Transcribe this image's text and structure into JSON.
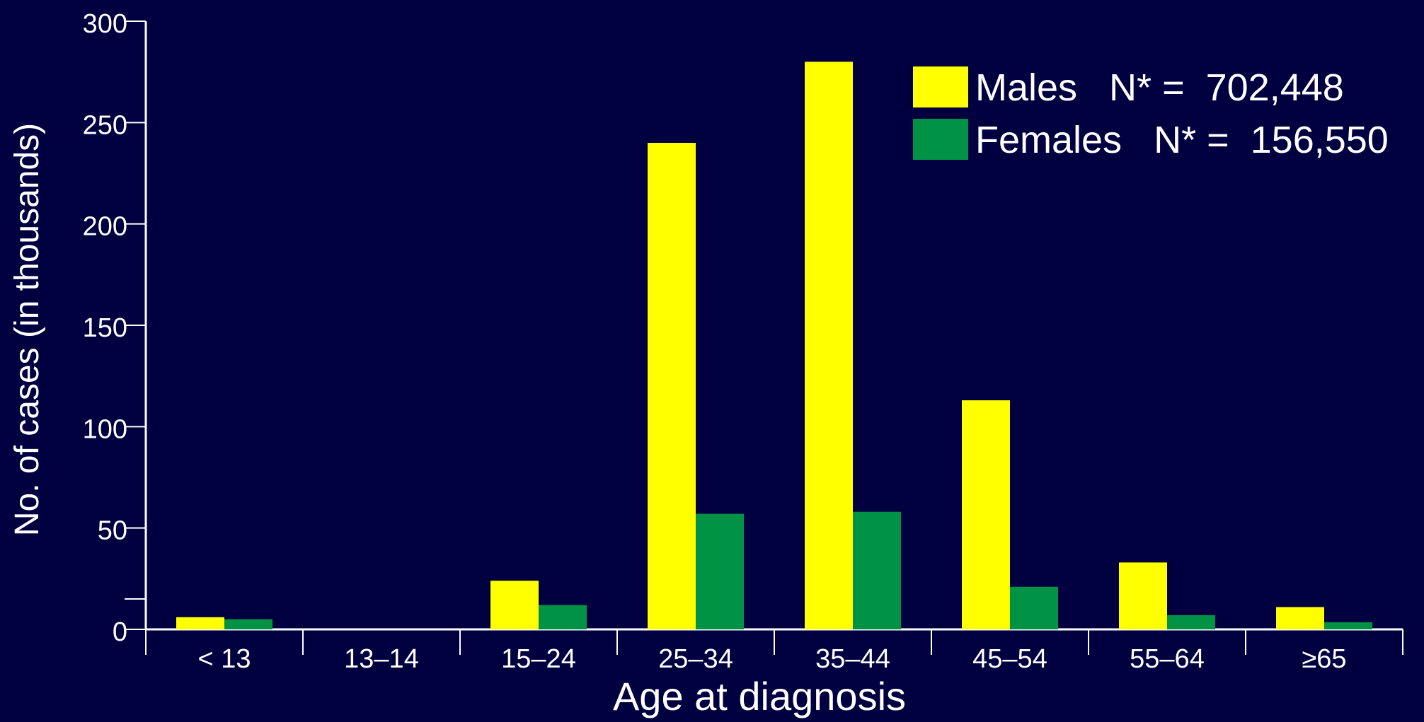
{
  "colors": {
    "background": "#000040",
    "axis": "#ffffff",
    "text": "#ffffff",
    "males": "#ffff00",
    "females": "#009245"
  },
  "chart_data": {
    "type": "bar",
    "title": "",
    "xlabel": "Age at diagnosis",
    "ylabel": "No. of cases (in thousands)",
    "ylim": [
      0,
      300
    ],
    "yticks": [
      0,
      50,
      100,
      150,
      200,
      250,
      300
    ],
    "grid": false,
    "legend_position": "top-right",
    "categories": [
      "< 13",
      "13–14",
      "15–24",
      "25–34",
      "35–44",
      "45–54",
      "55–64",
      "≥65"
    ],
    "series": [
      {
        "name": "Males",
        "legend_text": "Males   N* =  702,448",
        "color": "#ffff00",
        "values": [
          6,
          0,
          24,
          240,
          280,
          113,
          33,
          11
        ]
      },
      {
        "name": "Females",
        "legend_text": "Females   N* =  156,550",
        "color": "#009245",
        "values": [
          5,
          0,
          12,
          57,
          58,
          21,
          7,
          3.5
        ]
      }
    ]
  }
}
